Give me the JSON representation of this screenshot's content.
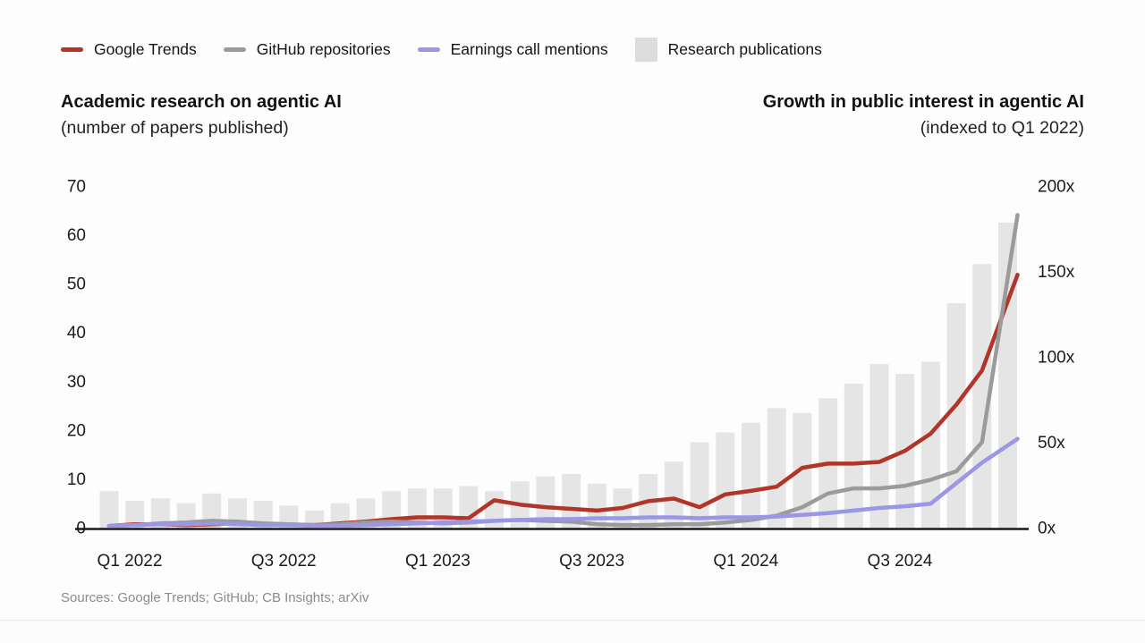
{
  "legend": {
    "items": [
      {
        "label": "Google Trends",
        "type": "line",
        "color": "#b13528"
      },
      {
        "label": "GitHub repositories",
        "type": "line",
        "color": "#9b9b9b"
      },
      {
        "label": "Earnings call mentions",
        "type": "line",
        "color": "#9c96e6"
      },
      {
        "label": "Research publications",
        "type": "bar",
        "color": "#dcdcdc"
      }
    ]
  },
  "left_header": {
    "title": "Academic research on agentic AI",
    "subtitle": "(number of papers published)"
  },
  "right_header": {
    "title": "Growth in public interest in agentic AI",
    "subtitle": "(indexed to Q1 2022)"
  },
  "footer": {
    "sources": "Sources: Google Trends; GitHub; CB Insights; arXiv"
  },
  "chart_data": {
    "type": "combo: monthly bars (left axis) + 3 indexed lines (right axis)",
    "grid": false,
    "legend_position": "top",
    "categories": [
      "Jan 2022",
      "Feb 2022",
      "Mar 2022",
      "Apr 2022",
      "May 2022",
      "Jun 2022",
      "Jul 2022",
      "Aug 2022",
      "Sep 2022",
      "Oct 2022",
      "Nov 2022",
      "Dec 2022",
      "Jan 2023",
      "Feb 2023",
      "Mar 2023",
      "Apr 2023",
      "May 2023",
      "Jun 2023",
      "Jul 2023",
      "Aug 2023",
      "Sep 2023",
      "Oct 2023",
      "Nov 2023",
      "Dec 2023",
      "Jan 2024",
      "Feb 2024",
      "Mar 2024",
      "Apr 2024",
      "May 2024",
      "Jun 2024",
      "Jul 2024",
      "Aug 2024",
      "Sep 2024",
      "Oct 2024",
      "Nov 2024",
      "Dec 2024"
    ],
    "x_ticks": [
      {
        "label": "Q1 2022",
        "month_index": 0
      },
      {
        "label": "Q3 2022",
        "month_index": 6
      },
      {
        "label": "Q1 2023",
        "month_index": 12
      },
      {
        "label": "Q3 2023",
        "month_index": 18
      },
      {
        "label": "Q1 2024",
        "month_index": 24
      },
      {
        "label": "Q3 2024",
        "month_index": 30
      }
    ],
    "left_axis": {
      "applies_to": "Research publications (bars)",
      "range": [
        0,
        70
      ],
      "ticks": [
        0,
        10,
        20,
        30,
        40,
        50,
        60,
        70
      ]
    },
    "right_axis": {
      "applies_to": "index lines (Q1 2022 = 1x)",
      "range": [
        0,
        200
      ],
      "ticks": [
        {
          "v": 0,
          "label": "0x"
        },
        {
          "v": 50,
          "label": "50x"
        },
        {
          "v": 100,
          "label": "100x"
        },
        {
          "v": 150,
          "label": "150x"
        },
        {
          "v": 200,
          "label": "200x"
        }
      ]
    },
    "bar_series": {
      "name": "Research publications",
      "axis": "left",
      "color": "#e5e5e5",
      "values": [
        7.5,
        5.5,
        6,
        5,
        7,
        6,
        5.5,
        4.5,
        3.5,
        5,
        6,
        7.5,
        8,
        8,
        8.5,
        7.5,
        9.5,
        10.5,
        11,
        9,
        8,
        11,
        13.5,
        17.5,
        19.5,
        21.5,
        24.5,
        23.5,
        26.5,
        29.5,
        33.5,
        31.5,
        34,
        46,
        54,
        62.5
      ]
    },
    "series": [
      {
        "name": "Google Trends",
        "axis": "right",
        "color": "#b13528",
        "values": [
          1,
          2,
          2,
          1.5,
          2,
          2.5,
          2,
          1.5,
          1.5,
          2.5,
          3.5,
          5,
          6,
          6,
          5.5,
          16,
          13.5,
          12,
          11,
          10,
          11.5,
          15.5,
          17,
          12,
          19.5,
          21.5,
          24,
          35,
          37.5,
          37.5,
          38.5,
          45,
          55,
          72,
          92,
          148
        ]
      },
      {
        "name": "GitHub repositories",
        "axis": "right",
        "color": "#9b9b9b",
        "values": [
          1,
          1.5,
          2.5,
          3,
          4,
          3.5,
          2.5,
          2,
          1.5,
          2,
          3,
          3.5,
          3,
          2.5,
          3,
          4,
          4.5,
          4,
          3.5,
          2,
          1.5,
          1.5,
          2,
          2,
          3,
          4.5,
          7,
          12,
          20,
          23,
          23,
          24.5,
          28,
          33,
          50,
          183
        ]
      },
      {
        "name": "Earnings call mentions",
        "axis": "right",
        "color": "#9c96e6",
        "values": [
          1,
          1.5,
          2,
          2,
          2.5,
          2,
          1.5,
          1.5,
          1,
          1,
          1.5,
          2,
          2.5,
          3,
          3.5,
          4,
          4.5,
          5,
          5,
          5.5,
          5.5,
          6,
          6,
          5.5,
          6,
          6,
          6.5,
          7.5,
          8.5,
          10,
          11.5,
          12.5,
          14,
          26,
          38,
          52
        ]
      }
    ]
  }
}
